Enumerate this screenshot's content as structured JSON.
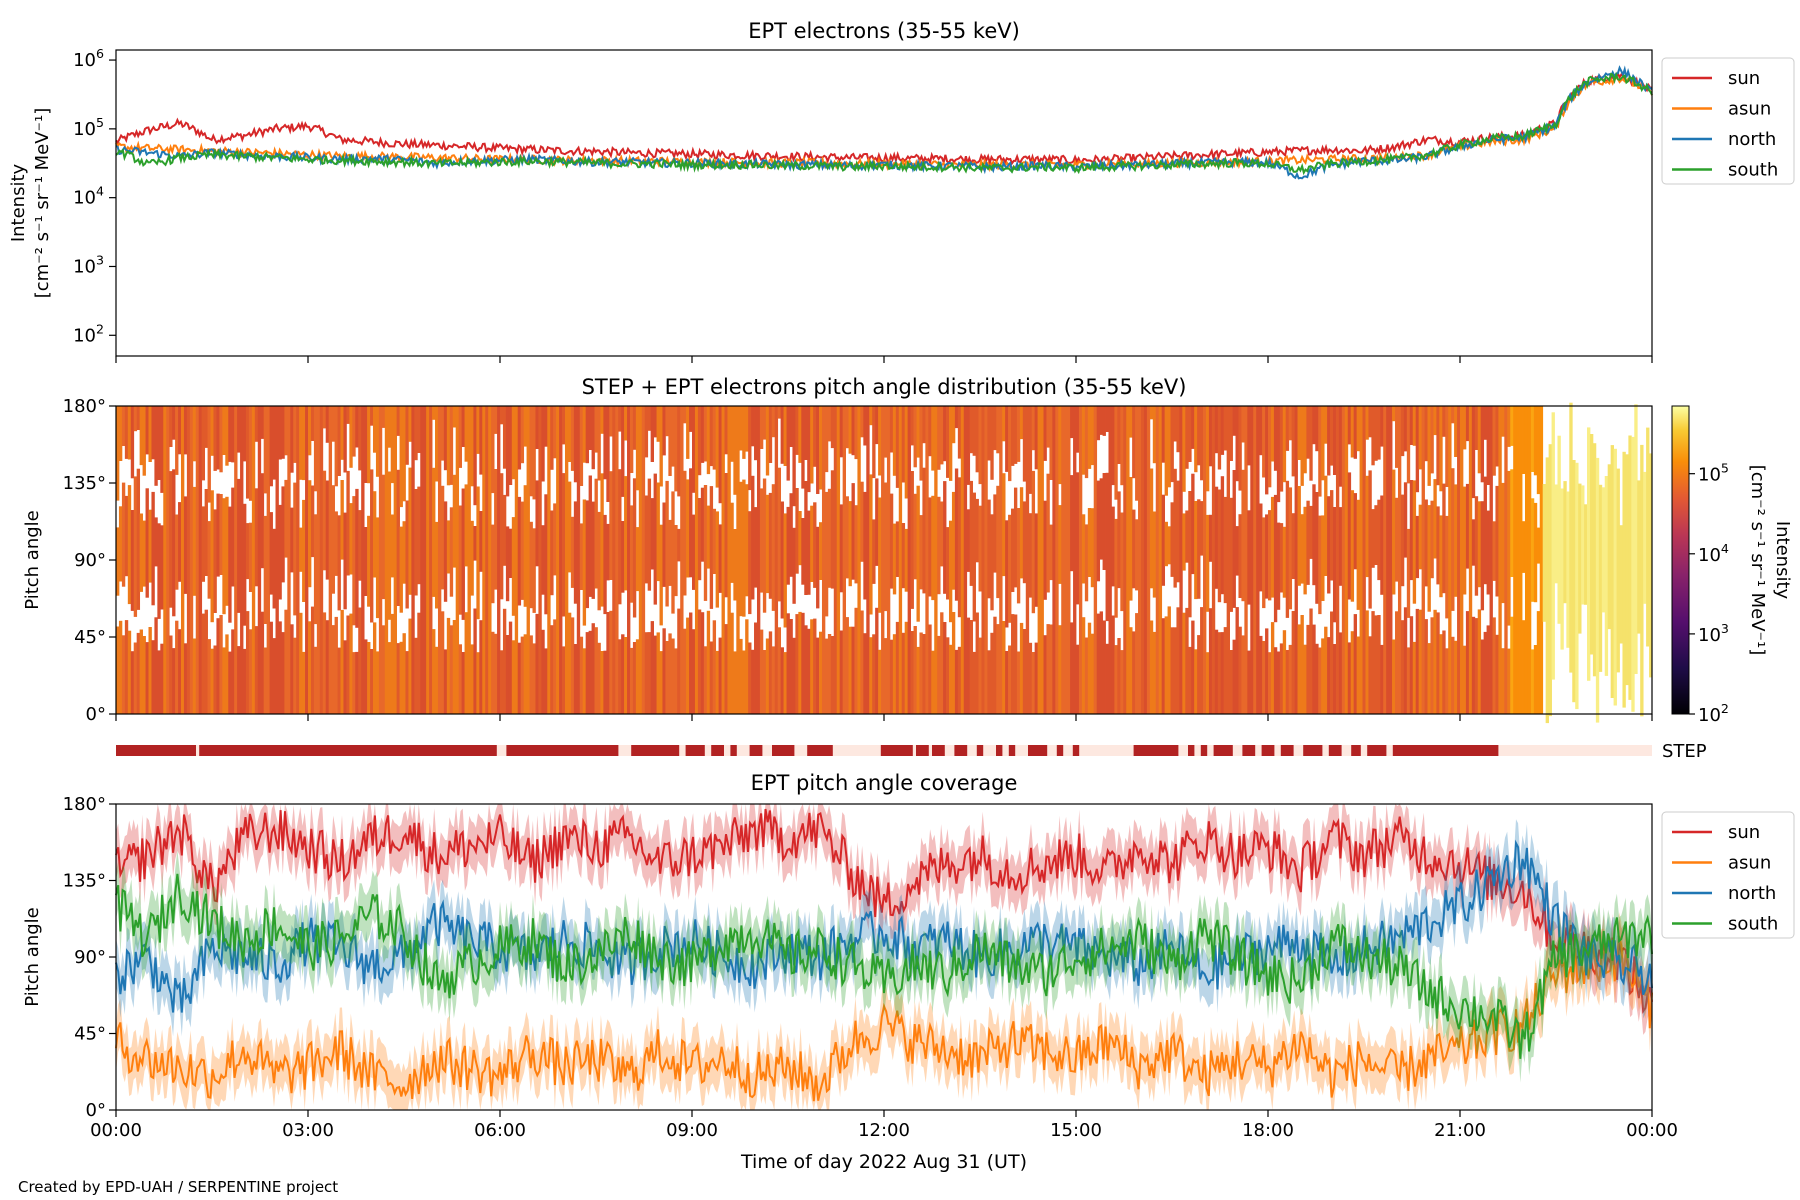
{
  "footer": "Created by EPD-UAH / SERPENTINE project",
  "x_axis": {
    "label": "Time of day 2022 Aug 31 (UT)",
    "ticks": [
      "00:00",
      "03:00",
      "06:00",
      "09:00",
      "12:00",
      "15:00",
      "18:00",
      "21:00",
      "00:00"
    ],
    "range_hours": [
      0,
      24
    ]
  },
  "colors": {
    "sun": "#d62728",
    "asun": "#ff7f0e",
    "north": "#1f77b4",
    "south": "#2ca02c",
    "step_bar": "#b22222",
    "step_gap": "#fde8e0"
  },
  "chart_data": [
    {
      "type": "line",
      "title": "EPT electrons (35-55 keV)",
      "ylabel_line1": "Intensity",
      "ylabel_line2": "[cm⁻² s⁻¹ sr⁻¹ MeV⁻¹]",
      "yscale": "log",
      "ylim": [
        50,
        1400000
      ],
      "yticks": [
        {
          "base": "10",
          "exp": "2"
        },
        {
          "base": "10",
          "exp": "3"
        },
        {
          "base": "10",
          "exp": "4"
        },
        {
          "base": "10",
          "exp": "5"
        },
        {
          "base": "10",
          "exp": "6"
        }
      ],
      "ytick_values": [
        100,
        1000,
        10000,
        100000,
        1000000
      ],
      "legend": [
        "sun",
        "asun",
        "north",
        "south"
      ],
      "legend_position": "outside-right",
      "x_hours": [
        0,
        0.5,
        1,
        1.5,
        2,
        2.5,
        3,
        3.5,
        4,
        4.5,
        5,
        5.5,
        6,
        6.5,
        7,
        7.5,
        8,
        8.5,
        9,
        9.5,
        10,
        10.5,
        11,
        11.5,
        12,
        12.5,
        13,
        13.5,
        14,
        14.5,
        15,
        15.5,
        16,
        16.5,
        17,
        17.5,
        18,
        18.5,
        19,
        19.5,
        20,
        20.5,
        21,
        21.5,
        22,
        22.5,
        23,
        23.5,
        24
      ],
      "series": [
        {
          "name": "sun",
          "values": [
            65000,
            95000,
            120000,
            70000,
            80000,
            100000,
            110000,
            70000,
            65000,
            60000,
            58000,
            55000,
            52000,
            50000,
            48000,
            47000,
            45000,
            44000,
            43000,
            42000,
            41000,
            40000,
            39000,
            38000,
            38000,
            37000,
            37000,
            36000,
            36000,
            36000,
            35000,
            36000,
            38000,
            40000,
            42000,
            44000,
            46000,
            48000,
            50000,
            48000,
            55000,
            70000,
            65000,
            75000,
            80000,
            120000,
            500000,
            600000,
            350000
          ]
        },
        {
          "name": "asun",
          "values": [
            55000,
            52000,
            50000,
            48000,
            46000,
            44000,
            42000,
            40000,
            40000,
            39000,
            38000,
            37000,
            36000,
            36000,
            35000,
            35000,
            34000,
            34000,
            33000,
            33000,
            32000,
            32000,
            32000,
            31000,
            31000,
            31000,
            30000,
            30000,
            30000,
            30000,
            30000,
            31000,
            31000,
            32000,
            32000,
            33000,
            34000,
            35000,
            36000,
            37000,
            38000,
            42000,
            55000,
            65000,
            70000,
            100000,
            450000,
            550000,
            330000
          ]
        },
        {
          "name": "north",
          "values": [
            50000,
            45000,
            40000,
            45000,
            42000,
            40000,
            38000,
            36000,
            37000,
            35000,
            32000,
            34000,
            35000,
            36000,
            34000,
            33000,
            33000,
            32000,
            32000,
            31000,
            31000,
            30000,
            30000,
            29000,
            30000,
            29000,
            29000,
            28000,
            28000,
            29000,
            28000,
            29000,
            30000,
            31000,
            32000,
            33000,
            32000,
            20000,
            30000,
            34000,
            35000,
            40000,
            55000,
            70000,
            75000,
            110000,
            480000,
            700000,
            330000
          ]
        },
        {
          "name": "south",
          "values": [
            48000,
            30000,
            38000,
            42000,
            40000,
            38000,
            36000,
            35000,
            34000,
            33000,
            31000,
            32000,
            33000,
            34000,
            33000,
            32000,
            31000,
            31000,
            30000,
            30000,
            30000,
            29000,
            29000,
            28000,
            29000,
            28000,
            28000,
            27000,
            27000,
            28000,
            27000,
            28000,
            29000,
            30000,
            31000,
            32000,
            31000,
            25000,
            31000,
            34000,
            36000,
            42000,
            58000,
            72000,
            78000,
            115000,
            490000,
            580000,
            340000
          ]
        }
      ]
    },
    {
      "type": "heatmap",
      "title": "STEP + EPT electrons pitch angle distribution (35-55 keV)",
      "ylabel": "Pitch angle",
      "ylim": [
        0,
        180
      ],
      "yticks": [
        "0°",
        "45°",
        "90°",
        "135°",
        "180°"
      ],
      "colorbar_label_line1": "Intensity",
      "colorbar_label_line2": "[cm⁻² s⁻¹ sr⁻¹ MeV⁻¹]",
      "colorbar_scale": "log",
      "colorbar_ticks": [
        {
          "base": "10",
          "exp": "2"
        },
        {
          "base": "10",
          "exp": "3"
        },
        {
          "base": "10",
          "exp": "4"
        },
        {
          "base": "10",
          "exp": "5"
        }
      ],
      "colorbar_range": [
        100,
        700000
      ],
      "colormap": "inferno"
    },
    {
      "type": "bar",
      "label": "STEP",
      "description_units": "hours of STEP availability",
      "segments": [
        [
          0,
          1.25
        ],
        [
          1.3,
          5.95
        ],
        [
          6.1,
          7.85
        ],
        [
          8.05,
          8.8
        ],
        [
          8.9,
          9.2
        ],
        [
          9.3,
          9.5
        ],
        [
          9.6,
          9.7
        ],
        [
          9.9,
          10.1
        ],
        [
          10.25,
          10.6
        ],
        [
          10.8,
          11.2
        ],
        [
          11.95,
          12.45
        ],
        [
          12.5,
          12.7
        ],
        [
          12.75,
          12.95
        ],
        [
          13.1,
          13.3
        ],
        [
          13.45,
          13.55
        ],
        [
          13.75,
          13.85
        ],
        [
          13.95,
          14.05
        ],
        [
          14.25,
          14.55
        ],
        [
          14.7,
          14.8
        ],
        [
          14.95,
          15.05
        ],
        [
          15.9,
          16.6
        ],
        [
          16.75,
          16.85
        ],
        [
          16.95,
          17.05
        ],
        [
          17.15,
          17.45
        ],
        [
          17.6,
          17.8
        ],
        [
          17.9,
          18.1
        ],
        [
          18.2,
          18.4
        ],
        [
          18.55,
          18.85
        ],
        [
          18.95,
          19.15
        ],
        [
          19.3,
          19.45
        ],
        [
          19.55,
          19.85
        ],
        [
          19.95,
          21.6
        ]
      ]
    },
    {
      "type": "line",
      "title": "EPT pitch angle coverage",
      "ylabel": "Pitch angle",
      "ylim": [
        0,
        180
      ],
      "yticks": [
        "0°",
        "45°",
        "90°",
        "135°",
        "180°"
      ],
      "legend": [
        "sun",
        "asun",
        "north",
        "south"
      ],
      "legend_position": "outside-right",
      "x_hours": [
        0,
        0.5,
        1,
        1.5,
        2,
        2.5,
        3,
        3.5,
        4,
        4.5,
        5,
        5.5,
        6,
        6.5,
        7,
        7.5,
        8,
        8.5,
        9,
        9.5,
        10,
        10.5,
        11,
        11.5,
        12,
        12.5,
        13,
        13.5,
        14,
        14.5,
        15,
        15.5,
        16,
        16.5,
        17,
        17.5,
        18,
        18.5,
        19,
        19.5,
        20,
        20.5,
        21,
        21.5,
        22,
        22.5,
        23,
        23.5,
        24
      ],
      "series": [
        {
          "name": "sun",
          "values": [
            140,
            150,
            165,
            130,
            160,
            165,
            155,
            145,
            160,
            165,
            150,
            155,
            160,
            145,
            160,
            155,
            160,
            145,
            150,
            155,
            165,
            160,
            165,
            140,
            120,
            135,
            145,
            150,
            140,
            145,
            150,
            140,
            155,
            145,
            160,
            150,
            155,
            140,
            160,
            150,
            160,
            150,
            145,
            135,
            130,
            100,
            95,
            90,
            60
          ]
        },
        {
          "name": "asun",
          "values": [
            40,
            30,
            25,
            20,
            35,
            20,
            25,
            35,
            20,
            15,
            30,
            25,
            20,
            35,
            25,
            30,
            20,
            35,
            25,
            30,
            20,
            25,
            15,
            40,
            50,
            40,
            35,
            30,
            40,
            35,
            30,
            40,
            25,
            35,
            20,
            30,
            25,
            40,
            20,
            30,
            20,
            30,
            35,
            45,
            50,
            80,
            85,
            90,
            60
          ]
        },
        {
          "name": "north",
          "values": [
            80,
            90,
            60,
            95,
            90,
            85,
            100,
            95,
            85,
            90,
            110,
            100,
            95,
            90,
            100,
            95,
            85,
            95,
            100,
            90,
            85,
            95,
            90,
            100,
            105,
            95,
            100,
            90,
            95,
            100,
            95,
            90,
            85,
            95,
            80,
            90,
            95,
            100,
            85,
            95,
            100,
            110,
            120,
            135,
            150,
            110,
            90,
            85,
            80
          ]
        },
        {
          "name": "south",
          "values": [
            120,
            100,
            130,
            110,
            100,
            110,
            95,
            100,
            115,
            105,
            75,
            85,
            95,
            100,
            85,
            90,
            105,
            90,
            85,
            100,
            105,
            90,
            95,
            85,
            75,
            85,
            80,
            95,
            85,
            80,
            90,
            95,
            100,
            85,
            105,
            90,
            80,
            75,
            100,
            90,
            85,
            70,
            60,
            55,
            40,
            90,
            95,
            100,
            105
          ]
        }
      ]
    }
  ]
}
